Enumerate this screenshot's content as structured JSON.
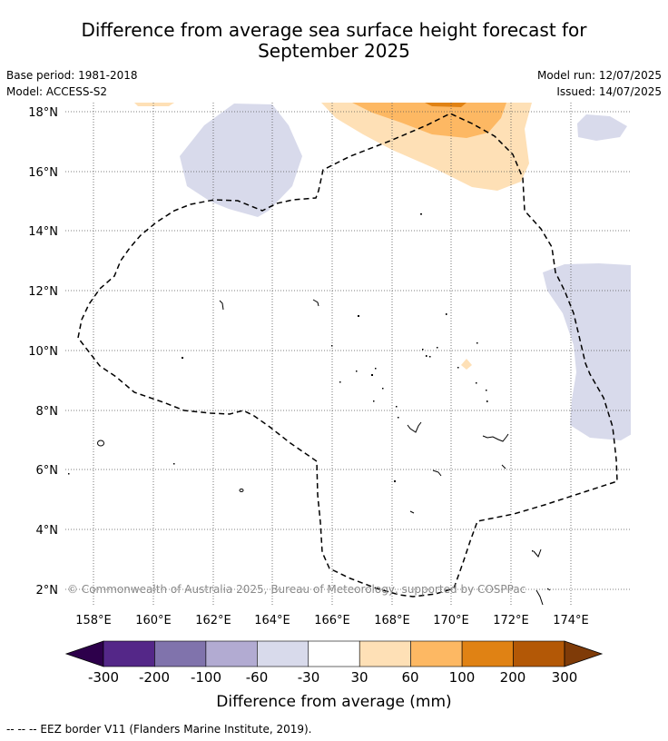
{
  "title_line1": "Difference from average sea surface height forecast for",
  "title_line2": "September 2025",
  "base_period": "Base period: 1981-2018",
  "model": "Model: ACCESS-S2",
  "model_run": "Model run: 12/07/2025",
  "issued": "Issued: 14/07/2025",
  "copyright": "© Commonwealth of Australia 2025, Bureau of Meteorology, supported by COSPPac",
  "lat_labels": [
    "18°N",
    "16°N",
    "14°N",
    "12°N",
    "10°N",
    "8°N",
    "6°N",
    "4°N",
    "2°N"
  ],
  "lon_labels": [
    "158°E",
    "160°E",
    "162°E",
    "164°E",
    "166°E",
    "168°E",
    "170°E",
    "172°E",
    "174°E"
  ],
  "colorbar": {
    "label": "Difference from average (mm)",
    "ticks": [
      "-300",
      "-200",
      "-100",
      "-60",
      "-30",
      "30",
      "60",
      "100",
      "200",
      "300"
    ],
    "colors": [
      "#2d004b",
      "#542788",
      "#8073ac",
      "#b2abd2",
      "#d8daeb",
      "#ffffff",
      "#fee0b6",
      "#fdb863",
      "#e08214",
      "#b35806",
      "#7f3b08"
    ]
  },
  "legend_text": "-- -- -- EEZ border V11 (Flanders Marine Institute, 2019)."
}
